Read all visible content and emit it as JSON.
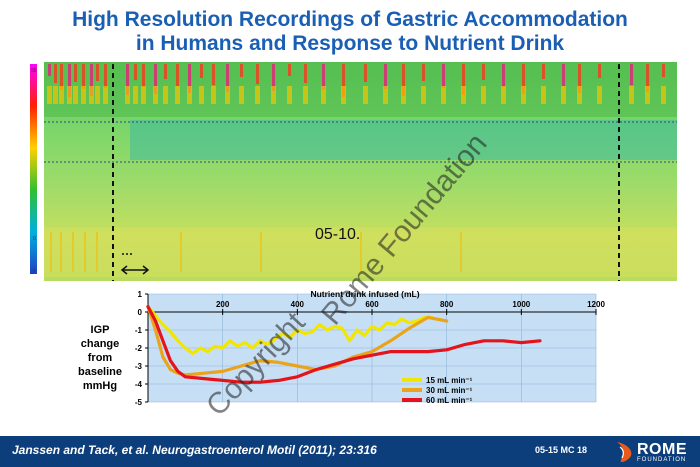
{
  "title": {
    "line1": "High Resolution Recordings of Gastric Accommodation",
    "line2": "in Humans and Response to Nutrient Drink"
  },
  "heatmap": {
    "scale_top": "50",
    "scale_zero": "0",
    "scale_bottom": "-7"
  },
  "annotation_code": "05-10.",
  "watermark": {
    "line1": "Copyright",
    "line2": "Rome Foundation"
  },
  "footer": {
    "citation": "Janssen and Tack, et al. Neurogastroenterol Motil (2011); 23:316",
    "slide_code": "05-15  MC 18",
    "logo_word": "ROME",
    "logo_sub": "FOUNDATION"
  },
  "colors": {
    "title": "#1a5fb4",
    "footer": "#0d3e7c",
    "chart_bg": "#c7dff5",
    "series_15": "#f2e600",
    "series_30": "#e9a41c",
    "series_60": "#e3141b"
  },
  "chart_data": {
    "type": "line",
    "xlabel": "Nutrient drink infused (mL)",
    "ylabel": "IGP change from baseline mmHg",
    "ylabel_lines": [
      "IGP",
      "change",
      "from",
      "baseline",
      "mmHg"
    ],
    "xlim": [
      0,
      1200
    ],
    "ylim": [
      -5,
      1
    ],
    "xticks": [
      200,
      400,
      600,
      800,
      1000,
      1200
    ],
    "yticks": [
      1,
      0,
      -1,
      -2,
      -3,
      -4,
      -5
    ],
    "grid": true,
    "legend_position": "bottom-right",
    "series": [
      {
        "name": "15 mL min⁻¹",
        "color": "#f2e600",
        "x": [
          0,
          20,
          40,
          60,
          80,
          100,
          120,
          140,
          160,
          180,
          200,
          220,
          240,
          260,
          280,
          300,
          320,
          340,
          360,
          380,
          400,
          420,
          440,
          460,
          480,
          500,
          520,
          540,
          560,
          580,
          600,
          620,
          640,
          660,
          680,
          700,
          720,
          740,
          760
        ],
        "y": [
          0.3,
          -0.2,
          -0.7,
          -1.1,
          -1.6,
          -2.0,
          -2.3,
          -2.0,
          -2.2,
          -1.9,
          -2.0,
          -1.6,
          -1.9,
          -1.7,
          -2.0,
          -1.6,
          -1.8,
          -1.5,
          -1.2,
          -1.4,
          -1.0,
          -1.2,
          -1.1,
          -0.7,
          -1.0,
          -0.8,
          -0.9,
          -1.6,
          -1.0,
          -1.3,
          -0.8,
          -1.0,
          -0.6,
          -0.7,
          -0.4,
          -0.6,
          -0.5,
          -0.3,
          -0.3
        ]
      },
      {
        "name": "30 mL min⁻¹",
        "color": "#e9a41c",
        "x": [
          0,
          20,
          40,
          60,
          80,
          100,
          150,
          200,
          250,
          300,
          350,
          400,
          450,
          500,
          550,
          600,
          650,
          700,
          750,
          800
        ],
        "y": [
          0.3,
          -1.0,
          -2.5,
          -3.2,
          -3.4,
          -3.5,
          -3.4,
          -3.3,
          -3.0,
          -2.7,
          -2.8,
          -3.0,
          -3.2,
          -3.0,
          -2.5,
          -2.2,
          -1.6,
          -0.9,
          -0.3,
          -0.5
        ]
      },
      {
        "name": "60 mL min⁻¹",
        "color": "#e3141b",
        "x": [
          0,
          20,
          40,
          60,
          80,
          100,
          150,
          200,
          250,
          300,
          350,
          400,
          450,
          500,
          550,
          600,
          650,
          700,
          750,
          800,
          850,
          900,
          950,
          1000,
          1050
        ],
        "y": [
          0.3,
          -0.5,
          -1.6,
          -2.7,
          -3.3,
          -3.6,
          -3.7,
          -3.8,
          -3.9,
          -3.9,
          -3.8,
          -3.6,
          -3.2,
          -2.9,
          -2.6,
          -2.4,
          -2.2,
          -2.2,
          -2.2,
          -2.1,
          -1.8,
          -1.6,
          -1.6,
          -1.7,
          -1.6
        ]
      }
    ]
  }
}
